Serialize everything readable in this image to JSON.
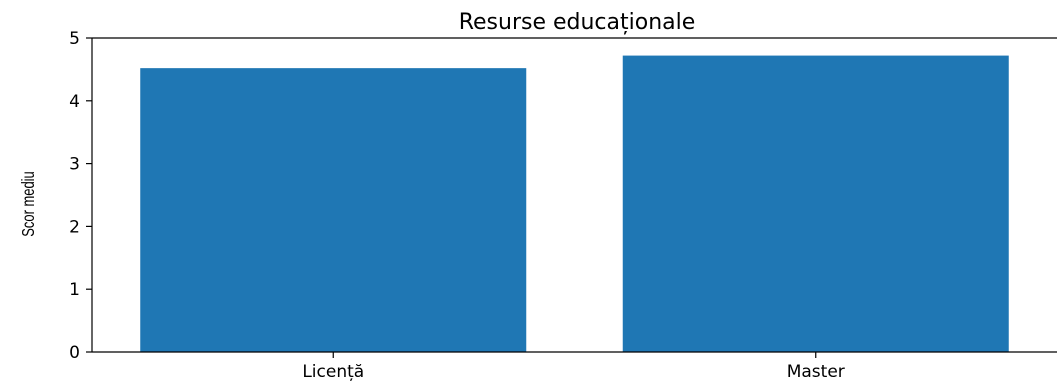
{
  "chart_data": {
    "type": "bar",
    "title": "Resurse educaționale",
    "xlabel": "",
    "ylabel": "Scor mediu",
    "categories": [
      "Licență",
      "Master"
    ],
    "values": [
      4.52,
      4.72
    ],
    "ylim": [
      0,
      5
    ],
    "yticks": [
      "0",
      "1",
      "2",
      "3",
      "4",
      "5"
    ],
    "bar_color": "#1f77b4",
    "grid": false
  }
}
